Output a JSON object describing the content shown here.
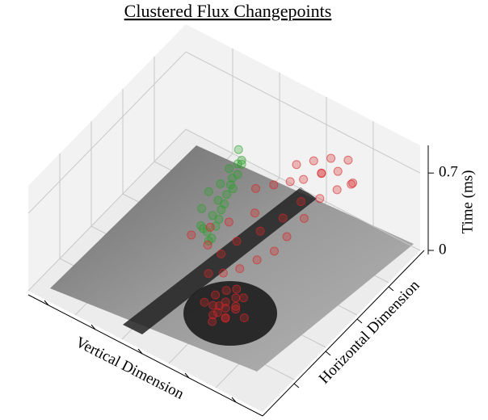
{
  "chart_data": {
    "type": "scatter3d",
    "title": "Clustered Flux Changepoints",
    "xlabel": "Horizontal Dimension",
    "ylabel": "Vertical Dimension",
    "zlabel": "Time (ms)",
    "zlim": [
      0,
      0.95
    ],
    "zticks": [
      0,
      0.7
    ],
    "series": [
      {
        "color": "#2ca02c",
        "x": [
          0.58,
          0.6,
          0.57,
          0.59,
          0.61,
          0.56,
          0.62,
          0.6,
          0.63,
          0.58,
          0.64,
          0.62,
          0.65,
          0.61,
          0.66,
          0.64,
          0.67,
          0.63,
          0.68,
          0.66,
          0.69,
          0.7,
          0.67,
          0.71
        ],
        "y": [
          0.62,
          0.64,
          0.6,
          0.66,
          0.61,
          0.63,
          0.63,
          0.59,
          0.6,
          0.65,
          0.62,
          0.58,
          0.59,
          0.64,
          0.57,
          0.61,
          0.58,
          0.56,
          0.6,
          0.55,
          0.57,
          0.56,
          0.54,
          0.58
        ],
        "z": [
          0.02,
          0.05,
          0.08,
          0.1,
          0.12,
          0.15,
          0.18,
          0.22,
          0.25,
          0.28,
          0.3,
          0.34,
          0.37,
          0.4,
          0.43,
          0.46,
          0.5,
          0.52,
          0.55,
          0.58,
          0.61,
          0.64,
          0.67,
          0.7
        ]
      },
      {
        "color": "#d62728",
        "x": [
          0.3,
          0.33,
          0.28,
          0.35,
          0.31,
          0.27,
          0.36,
          0.32,
          0.29,
          0.34,
          0.38,
          0.26,
          0.33,
          0.37,
          0.3,
          0.4,
          0.25,
          0.35,
          0.42,
          0.45,
          0.48,
          0.5,
          0.52,
          0.55,
          0.47,
          0.58,
          0.6,
          0.44,
          0.62,
          0.56,
          0.65,
          0.53,
          0.68,
          0.4,
          0.72,
          0.75,
          0.78,
          0.8,
          0.82,
          0.85,
          0.77,
          0.88,
          0.83,
          0.86,
          0.9,
          0.74,
          0.7,
          0.79,
          0.87,
          0.84
        ],
        "y": [
          0.36,
          0.38,
          0.4,
          0.35,
          0.42,
          0.34,
          0.4,
          0.33,
          0.38,
          0.43,
          0.37,
          0.39,
          0.3,
          0.33,
          0.45,
          0.38,
          0.36,
          0.39,
          0.45,
          0.4,
          0.5,
          0.36,
          0.46,
          0.32,
          0.55,
          0.4,
          0.3,
          0.6,
          0.45,
          0.52,
          0.35,
          0.58,
          0.28,
          0.5,
          0.32,
          0.26,
          0.35,
          0.22,
          0.3,
          0.25,
          0.4,
          0.3,
          0.18,
          0.36,
          0.24,
          0.45,
          0.5,
          0.28,
          0.2,
          0.42
        ],
        "z": [
          0.02,
          0.04,
          0.03,
          0.06,
          0.05,
          0.08,
          0.03,
          0.1,
          0.12,
          0.09,
          0.07,
          0.01,
          0.04,
          0.13,
          0.06,
          0.11,
          0.14,
          0.16,
          0.15,
          0.2,
          0.18,
          0.25,
          0.28,
          0.3,
          0.22,
          0.35,
          0.38,
          0.3,
          0.4,
          0.33,
          0.42,
          0.26,
          0.45,
          0.12,
          0.5,
          0.55,
          0.58,
          0.6,
          0.63,
          0.66,
          0.52,
          0.68,
          0.65,
          0.62,
          0.7,
          0.48,
          0.45,
          0.7,
          0.58,
          0.55
        ]
      }
    ]
  }
}
